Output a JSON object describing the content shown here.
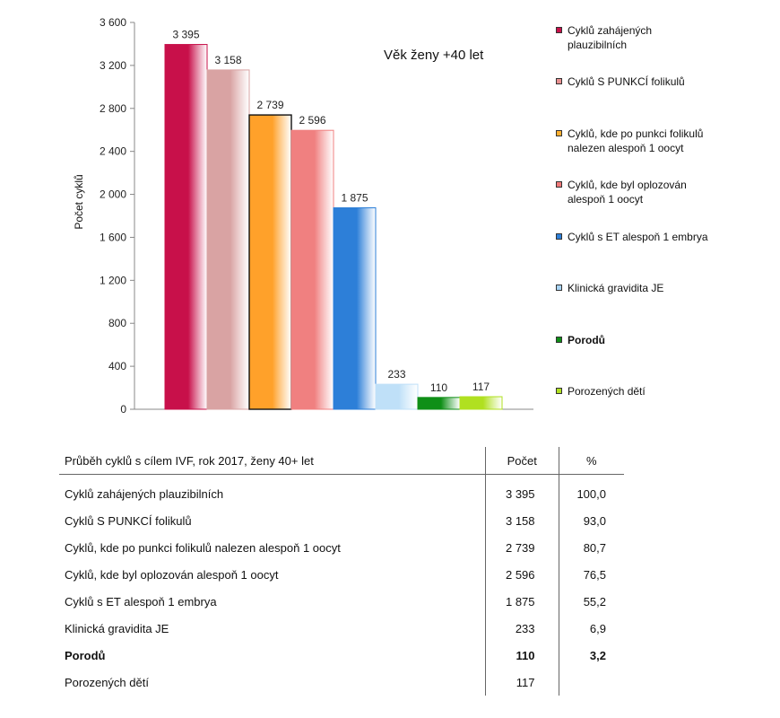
{
  "chart_data": {
    "type": "bar",
    "ylabel": "Počet cyklů",
    "xlabel": "",
    "annotation": "Věk ženy +40 let",
    "ylim": [
      0,
      3600
    ],
    "yticks": [
      0,
      400,
      800,
      1200,
      1600,
      2000,
      2400,
      2800,
      3200,
      3600
    ],
    "ytick_labels": [
      "0",
      "400",
      "800",
      "1 200",
      "1 600",
      "2 000",
      "2 400",
      "2 800",
      "3 200",
      "3 600"
    ],
    "grid": false,
    "legend_position": "right",
    "categories": [
      "Cyklů zahájených plauzibilních",
      "Cyklů S PUNKCÍ folikulů",
      "Cyklů, kde po punkci folikulů nalezen alespoň 1 oocyt",
      "Cyklů, kde byl oplozován alespoň 1 oocyt",
      "Cyklů s ET alespoň 1 embrya",
      "Klinická gravidita JE",
      "Porodů",
      "Porozených dětí"
    ],
    "values": [
      3395,
      3158,
      2739,
      2596,
      1875,
      233,
      110,
      117
    ],
    "data_labels": [
      "3 395",
      "3 158",
      "2 739",
      "2 596",
      "1 875",
      "233",
      "110",
      "117"
    ],
    "colors": [
      "#c8104a",
      "#d9a3a3",
      "#ffa12a",
      "#f08080",
      "#2d7fd8",
      "#bfe0f8",
      "#0f8f17",
      "#b0e020"
    ]
  },
  "legend": [
    {
      "line1": "Cyklů zahájených",
      "line2": "plauzibilních",
      "color": "#c8104a",
      "bold": false
    },
    {
      "line1": "Cyklů S PUNKCÍ folikulů",
      "line2": "",
      "color": "#e89090",
      "bold": false
    },
    {
      "line1": "Cyklů, kde po punkci folikulů",
      "line2": "nalezen alespoň 1 oocyt",
      "color": "#ffb030",
      "bold": false
    },
    {
      "line1": "Cyklů, kde byl oplozován",
      "line2": "alespoň 1 oocyt",
      "color": "#f07878",
      "bold": false
    },
    {
      "line1": "Cyklů s ET alespoň 1 embrya",
      "line2": "",
      "color": "#2d7fd8",
      "bold": false
    },
    {
      "line1": "Klinická gravidita JE",
      "line2": "",
      "color": "#a8d4f5",
      "bold": false
    },
    {
      "line1": "Porodů",
      "line2": "",
      "color": "#0f8f17",
      "bold": true
    },
    {
      "line1": "Porozených dětí",
      "line2": "",
      "color": "#b0e020",
      "bold": false
    }
  ],
  "table": {
    "header": {
      "label": "Průběh cyklů s cílem IVF, rok 2017, ženy 40+ let",
      "count": "Počet",
      "pct": "%"
    },
    "rows": [
      {
        "label": "Cyklů zahájených plauzibilních",
        "count": "3 395",
        "pct": "100,0",
        "bold": false
      },
      {
        "label": "Cyklů S PUNKCÍ folikulů",
        "count": "3 158",
        "pct": "93,0",
        "bold": false
      },
      {
        "label": "Cyklů, kde po punkci folikulů nalezen alespoň 1 oocyt",
        "count": "2 739",
        "pct": "80,7",
        "bold": false
      },
      {
        "label": "Cyklů, kde byl oplozován alespoň 1 oocyt",
        "count": "2 596",
        "pct": "76,5",
        "bold": false
      },
      {
        "label": "Cyklů s ET alespoň 1 embrya",
        "count": "1 875",
        "pct": "55,2",
        "bold": false
      },
      {
        "label": "Klinická gravidita JE",
        "count": "233",
        "pct": "6,9",
        "bold": false
      },
      {
        "label": "Porodů",
        "count": "110",
        "pct": "3,2",
        "bold": true
      },
      {
        "label": "Porozených dětí",
        "count": "117",
        "pct": "",
        "bold": false
      }
    ]
  }
}
